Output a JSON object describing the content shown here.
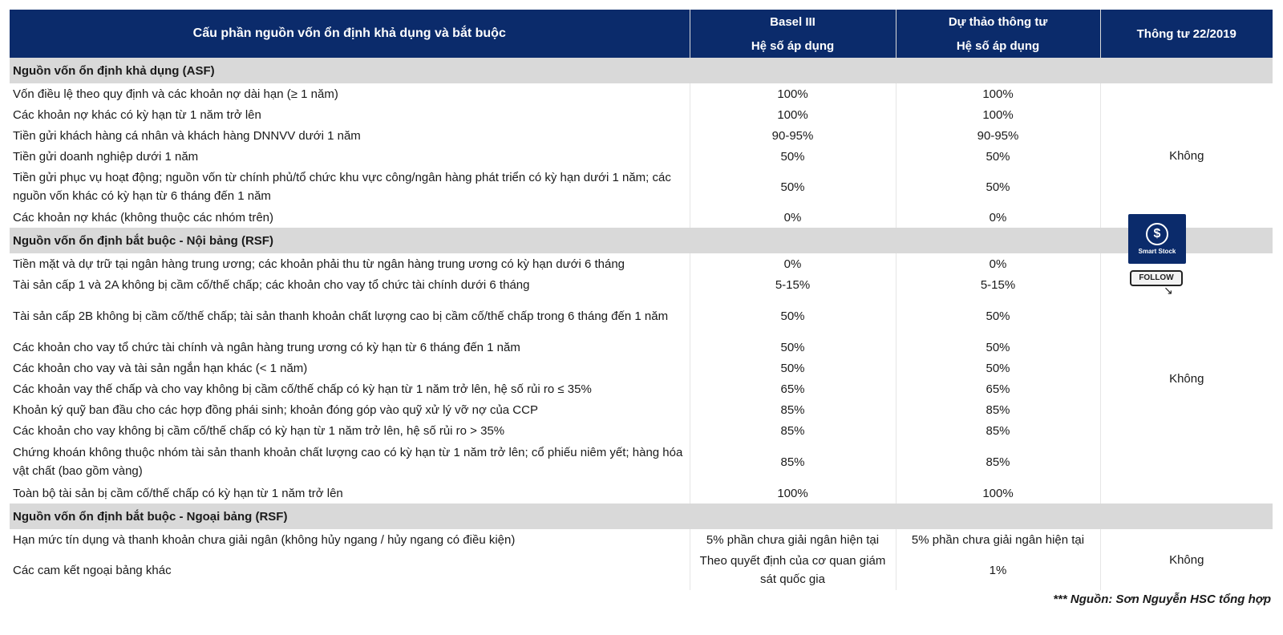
{
  "header": {
    "col1": "Cấu phần nguồn vốn ổn định khả dụng và bắt buộc",
    "col2_top": "Basel III",
    "col2_sub": "Hệ số áp dụng",
    "col3_top": "Dự thảo thông tư",
    "col3_sub": "Hệ số áp dụng",
    "col4": "Thông tư 22/2019"
  },
  "sections": [
    {
      "title": "Nguồn vốn ổn định khả dụng (ASF)",
      "side_value": "Không",
      "rows": [
        {
          "label": "Vốn điều lệ theo quy định và các khoản nợ dài hạn (≥ 1 năm)",
          "basel": "100%",
          "draft": "100%"
        },
        {
          "label": "Các khoản nợ khác có kỳ hạn từ 1 năm trở lên",
          "basel": "100%",
          "draft": "100%"
        },
        {
          "label": "Tiền gửi khách hàng cá nhân và khách hàng DNNVV dưới 1 năm",
          "basel": "90-95%",
          "draft": "90-95%"
        },
        {
          "label": "Tiền gửi doanh nghiệp dưới 1 năm",
          "basel": "50%",
          "draft": "50%"
        },
        {
          "label": "Tiền gửi phục vụ hoạt động; nguồn vốn từ chính phủ/tổ chức khu vực công/ngân hàng phát triển có kỳ hạn dưới 1 năm; các nguồn vốn khác có kỳ hạn từ 6 tháng đến 1 năm",
          "basel": "50%",
          "draft": "50%"
        },
        {
          "label": "Các khoản nợ khác (không thuộc các nhóm trên)",
          "basel": "0%",
          "draft": "0%"
        }
      ]
    },
    {
      "title": "Nguồn vốn ổn định bắt buộc - Nội bảng (RSF)",
      "side_value": "Không",
      "rows": [
        {
          "label": "Tiền mặt và dự trữ tại ngân hàng trung ương; các khoản phải thu từ ngân hàng trung ương có kỳ hạn dưới 6 tháng",
          "basel": "0%",
          "draft": "0%"
        },
        {
          "label": "Tài sản cấp 1 và 2A không bị cầm cố/thế chấp; các khoản cho vay tổ chức tài chính dưới 6 tháng",
          "basel": "5-15%",
          "draft": "5-15%"
        },
        {
          "label": "Tài sản cấp 2B không bị cầm cố/thế chấp; tài sản thanh khoản chất lượng cao bị cầm cố/thế chấp trong 6 tháng đến 1 năm",
          "basel": "50%",
          "draft": "50%"
        },
        {
          "label": "Các khoản cho vay tổ chức tài chính và ngân hàng trung ương có kỳ hạn từ 6 tháng đến 1 năm",
          "basel": "50%",
          "draft": "50%"
        },
        {
          "label": "Các khoản cho vay và tài sản ngắn hạn khác (< 1 năm)",
          "basel": "50%",
          "draft": "50%"
        },
        {
          "label": "Các khoản vay thế chấp và cho vay không bị cầm cố/thế chấp có kỳ hạn từ 1 năm trở lên, hệ số rủi ro ≤ 35%",
          "basel": "65%",
          "draft": "65%"
        },
        {
          "label": "Khoản ký quỹ ban đầu cho các hợp đồng phái sinh; khoản đóng góp vào quỹ xử lý vỡ nợ của CCP",
          "basel": "85%",
          "draft": "85%"
        },
        {
          "label": "Các khoản cho vay không bị cầm cố/thế chấp có kỳ hạn từ 1 năm trở lên, hệ số rủi ro > 35%",
          "basel": "85%",
          "draft": "85%"
        },
        {
          "label": "Chứng khoán không thuộc nhóm tài sản thanh khoản chất lượng cao có kỳ hạn từ 1 năm trở lên; cổ phiếu niêm yết; hàng hóa vật chất (bao gồm vàng)",
          "basel": "85%",
          "draft": "85%"
        },
        {
          "label": "Toàn bộ tài sản bị cầm cố/thế chấp có kỳ hạn từ 1 năm trở lên",
          "basel": "100%",
          "draft": "100%"
        }
      ]
    },
    {
      "title": "Nguồn vốn ổn định bắt buộc - Ngoại bảng (RSF)",
      "side_value": "Không",
      "rows": [
        {
          "label": "Hạn mức tín dụng và thanh khoản chưa giải ngân (không hủy ngang / hủy ngang có điều kiện)",
          "basel": "5% phần chưa giải ngân hiện tại",
          "draft": "5% phần chưa giải ngân hiện tại"
        },
        {
          "label": "Các cam kết ngoại bảng khác",
          "basel": "Theo quyết định của cơ quan giám sát quốc gia",
          "draft": "1%"
        }
      ]
    }
  ],
  "source_note": "*** Nguồn: Sơn Nguyễn HSC tổng hợp",
  "watermark": {
    "brand": "Smart Stock",
    "button": "FOLLOW"
  }
}
